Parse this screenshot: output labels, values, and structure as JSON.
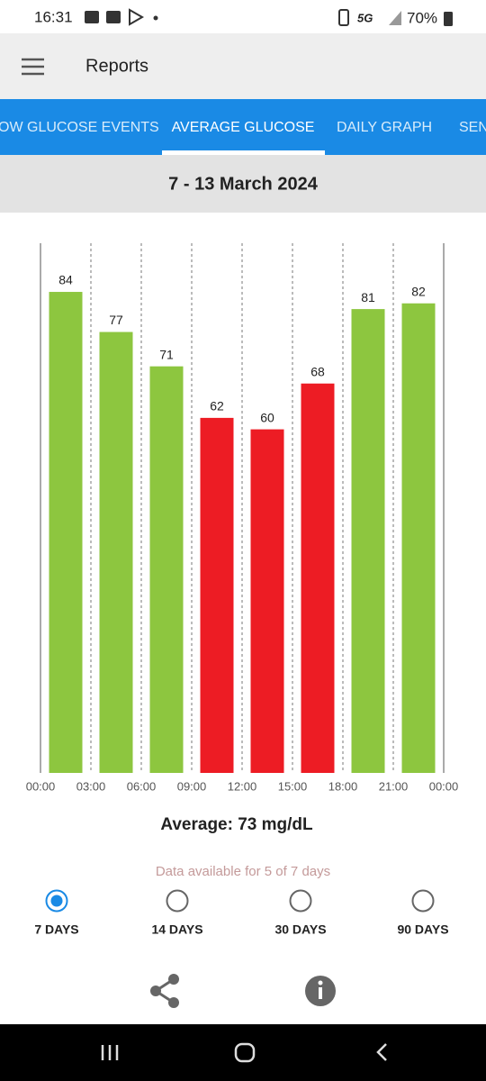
{
  "status_bar": {
    "time": "16:31",
    "network": "5G",
    "battery": "70%"
  },
  "app_bar": {
    "title": "Reports"
  },
  "tabs": [
    {
      "label": "OW GLUCOSE EVENTS"
    },
    {
      "label": "AVERAGE GLUCOSE",
      "selected": true
    },
    {
      "label": "DAILY GRAPH"
    },
    {
      "label": "SEN"
    }
  ],
  "date_range": "7 - 13 March 2024",
  "chart_data": {
    "type": "bar",
    "x": [
      1.5,
      4.5,
      7.5,
      10.5,
      13.5,
      16.5,
      19.5,
      22.5
    ],
    "values": [
      84,
      77,
      71,
      62,
      60,
      68,
      81,
      82
    ],
    "colors": [
      "#8dc63f",
      "#8dc63f",
      "#8dc63f",
      "#ed1c24",
      "#ed1c24",
      "#ed1c24",
      "#8dc63f",
      "#8dc63f"
    ],
    "xlim": [
      0,
      24
    ],
    "xticks": [
      {
        "value": 0,
        "label": "00:00"
      },
      {
        "value": 3,
        "label": "03:00"
      },
      {
        "value": 6,
        "label": "06:00"
      },
      {
        "value": 9,
        "label": "09:00"
      },
      {
        "value": 12,
        "label": "12:00"
      },
      {
        "value": 15,
        "label": "15:00"
      },
      {
        "value": 18,
        "label": "18:00"
      },
      {
        "value": 21,
        "label": "21:00"
      },
      {
        "value": 24,
        "label": "00:00"
      }
    ],
    "ylim": [
      0,
      92.5
    ],
    "grid": true
  },
  "average": "Average: 73 mg/dL",
  "availability_note": "Data available for 5 of 7 days",
  "period_options": [
    {
      "label": "7 DAYS",
      "selected": true
    },
    {
      "label": "14 DAYS"
    },
    {
      "label": "30 DAYS"
    },
    {
      "label": "90 DAYS"
    }
  ]
}
